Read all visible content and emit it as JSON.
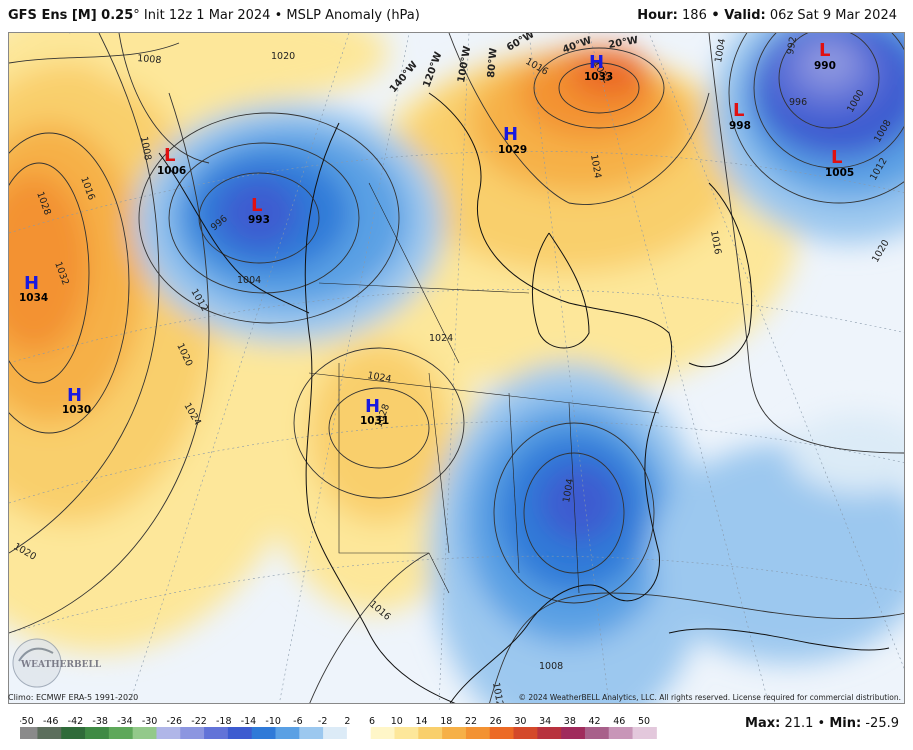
{
  "header": {
    "model": "GFS Ens [M] 0.25",
    "deg": "°",
    "init": " Init 12z 1 Mar 2024",
    "sep": " • ",
    "product": "MSLP Anomaly (hPa)",
    "hour_label": "Hour:",
    "hour_value": " 186",
    "valid_label": "Valid:",
    "valid_value": " 06z Sat 9 Mar 2024"
  },
  "footer": {
    "climo": "Climo: ECMWF ERA-5 1991-2020",
    "copyright": "© 2024 WeatherBELL Analytics, LLC. All rights reserved. License required for commercial distribution.",
    "max_label": "Max:",
    "max_value": " 21.1",
    "min_label": "Min:",
    "min_value": " -25.9"
  },
  "logo": {
    "name": "weatherbell-logo-icon",
    "text": "WEATHERBELL"
  },
  "colorbar": {
    "ticks": [
      "-50",
      "-46",
      "-42",
      "-38",
      "-34",
      "-30",
      "-26",
      "-22",
      "-18",
      "-14",
      "-10",
      "-6",
      "-2",
      "2",
      "6",
      "10",
      "14",
      "18",
      "22",
      "26",
      "30",
      "34",
      "38",
      "42",
      "46",
      "50"
    ],
    "colors": [
      "#8a8a8a",
      "#5c6e5c",
      "#2f6b39",
      "#3f8a44",
      "#5ea85a",
      "#93c98a",
      "#b0b6e8",
      "#8c96e0",
      "#6273d8",
      "#3d5bd0",
      "#2f7ad8",
      "#5aa0e4",
      "#9cc8ef",
      "#dcebf7",
      "#ffffff",
      "#fff6c8",
      "#fde79a",
      "#f9cf6c",
      "#f6b047",
      "#f39232",
      "#ec6a25",
      "#d4492a",
      "#b8323e",
      "#a02b5c",
      "#a8608a",
      "#c896b8",
      "#e3c8dc"
    ]
  },
  "pressure_centers": [
    {
      "type": "H",
      "value": "1034"
    },
    {
      "type": "H",
      "value": "1030"
    },
    {
      "type": "L",
      "value": "1006"
    },
    {
      "type": "L",
      "value": "993"
    },
    {
      "type": "H",
      "value": "1031"
    },
    {
      "type": "H",
      "value": "1029"
    },
    {
      "type": "H",
      "value": "1033"
    },
    {
      "type": "L",
      "value": "990"
    },
    {
      "type": "L",
      "value": "998"
    },
    {
      "type": "L",
      "value": "1005"
    }
  ],
  "isobar_labels": [
    "1008",
    "1020",
    "1016",
    "1028",
    "1032",
    "1020",
    "1024",
    "1020",
    "1012",
    "1004",
    "996",
    "1008",
    "1024",
    "1024",
    "1028",
    "1004",
    "1008",
    "1016",
    "1012",
    "1016",
    "1032",
    "1024",
    "1016",
    "1004",
    "992",
    "996",
    "1000",
    "1008",
    "1012",
    "1020"
  ],
  "longitude_labels": [
    "140°W",
    "120°W",
    "100°W",
    "80°W",
    "60°W",
    "40°W",
    "20°W"
  ],
  "colors": {
    "positive_anomaly": "#f6b047",
    "negative_anomaly": "#3d5bd0",
    "high_marker": "#1a1adf",
    "low_marker": "#e01010"
  }
}
